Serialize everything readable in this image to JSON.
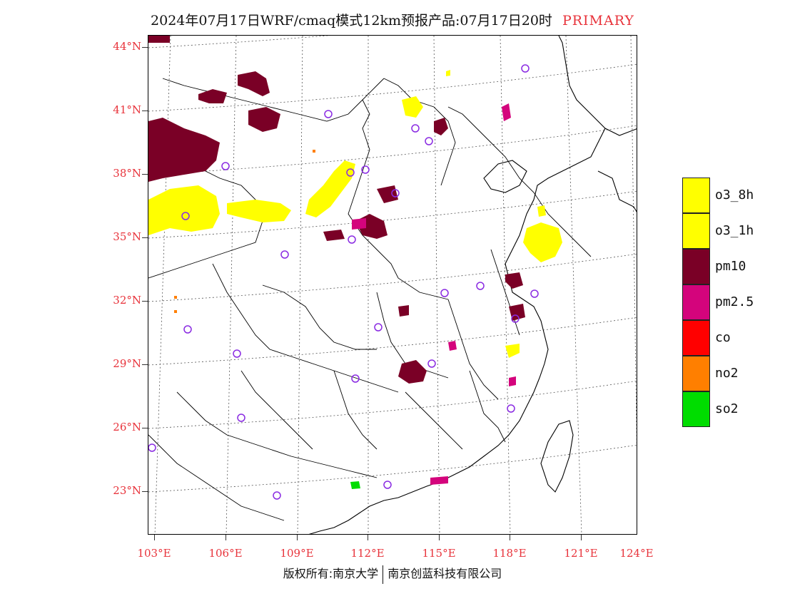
{
  "title": {
    "text": "2024年07月17日WRF/cmaq模式12km预报产品:07月17日20时",
    "tag": "PRIMARY"
  },
  "map": {
    "lat_labels": [
      "44°N",
      "41°N",
      "38°N",
      "35°N",
      "32°N",
      "29°N",
      "26°N",
      "23°N"
    ],
    "lon_labels": [
      "103°E",
      "106°E",
      "109°E",
      "112°E",
      "115°E",
      "118°E",
      "121°E",
      "124°E"
    ]
  },
  "legend": {
    "items": [
      {
        "label": "o3_8h",
        "color": "#ffff00"
      },
      {
        "label": "o3_1h",
        "color": "#ffff00"
      },
      {
        "label": "pm10",
        "color": "#7a0026"
      },
      {
        "label": "pm2.5",
        "color": "#d4047c"
      },
      {
        "label": "co",
        "color": "#ff0000"
      },
      {
        "label": "no2",
        "color": "#ff7f00"
      },
      {
        "label": "so2",
        "color": "#00dd00"
      }
    ]
  },
  "colors": {
    "axis_label": "#e8333b",
    "station_marker": "#8a2be2"
  },
  "copyright": {
    "owner": "版权所有:南京大学",
    "company": "南京创蓝科技有限公司"
  }
}
